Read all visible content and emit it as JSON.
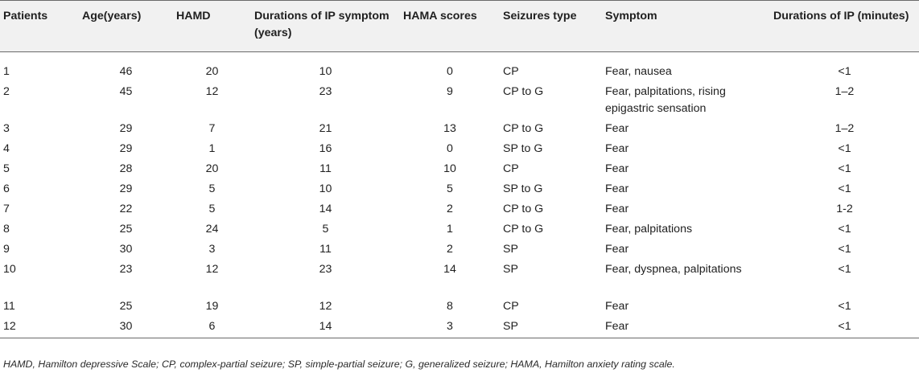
{
  "table": {
    "headers": [
      "Patients",
      "Age(years)",
      "HAMD",
      "Durations of IP symptom (years)",
      "HAMA scores",
      "Seizures type",
      "Symptom",
      "Durations of IP (minutes)"
    ],
    "rows": [
      [
        "1",
        "46",
        "20",
        "10",
        "0",
        "CP",
        "Fear, nausea",
        "<1"
      ],
      [
        "2",
        "45",
        "12",
        "23",
        "9",
        "CP to G",
        "Fear, palpitations, rising epigastric sensation",
        "1–2"
      ],
      [
        "3",
        "29",
        "7",
        "21",
        "13",
        "CP to G",
        "Fear",
        "1–2"
      ],
      [
        "4",
        "29",
        "1",
        "16",
        "0",
        "SP to G",
        "Fear",
        "<1"
      ],
      [
        "5",
        "28",
        "20",
        "11",
        "10",
        "CP",
        "Fear",
        "<1"
      ],
      [
        "6",
        "29",
        "5",
        "10",
        "5",
        "SP to G",
        "Fear",
        "<1"
      ],
      [
        "7",
        "22",
        "5",
        "14",
        "2",
        "CP to G",
        "Fear",
        "1-2"
      ],
      [
        "8",
        "25",
        "24",
        "5",
        "1",
        "CP to G",
        "Fear, palpitations",
        "<1"
      ],
      [
        "9",
        "30",
        "3",
        "11",
        "2",
        "SP",
        "Fear",
        "<1"
      ],
      [
        "10",
        "23",
        "12",
        "23",
        "14",
        "SP",
        "Fear, dyspnea, palpitations",
        "<1"
      ],
      [
        "11",
        "25",
        "19",
        "12",
        "8",
        "CP",
        "Fear",
        "<1"
      ],
      [
        "12",
        "30",
        "6",
        "14",
        "3",
        "SP",
        "Fear",
        "<1"
      ]
    ]
  },
  "footnote": "HAMD, Hamilton depressive Scale; CP, complex-partial seizure; SP, simple-partial seizure; G, generalized seizure; HAMA, Hamilton anxiety rating scale."
}
